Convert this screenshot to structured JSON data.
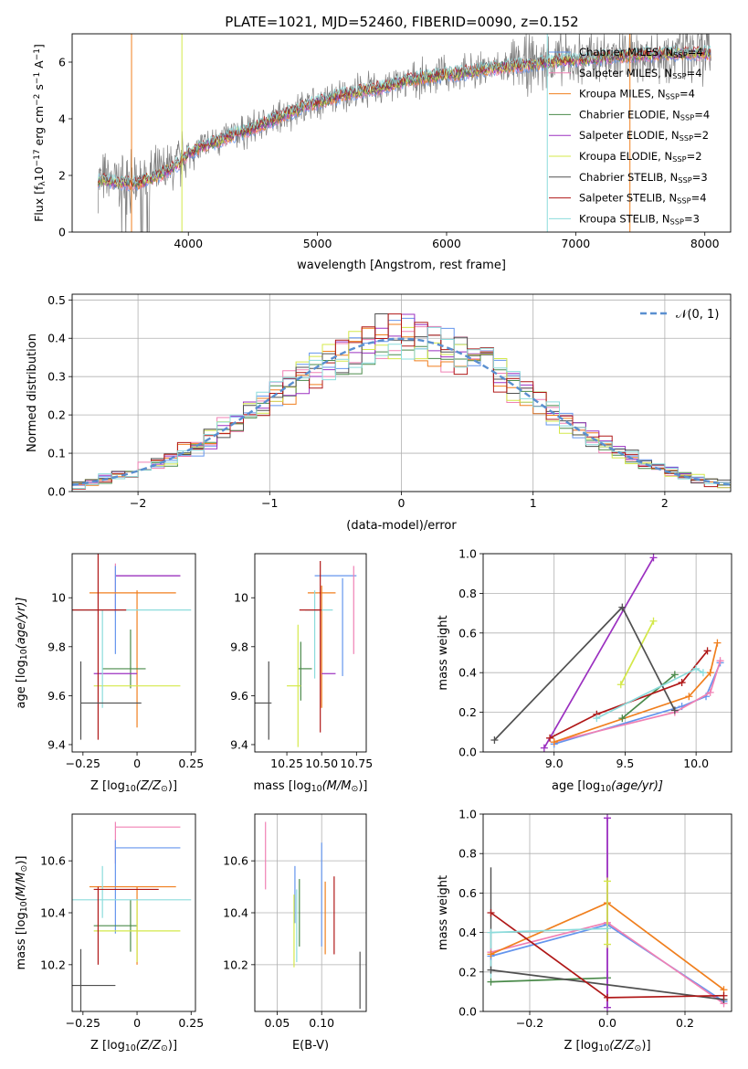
{
  "figure_title": "PLATE=1021, MJD=52460, FIBERID=0090, z=0.152",
  "colors": {
    "data": "#808080",
    "chabrier_miles": "#6495ED",
    "salpeter_miles": "#F080B4",
    "kroupa_miles": "#F07F1E",
    "chabrier_elodie": "#4A8A4A",
    "salpeter_elodie": "#9B30C0",
    "kroupa_elodie": "#D4E84A",
    "chabrier_stelib": "#505050",
    "salpeter_stelib": "#B01818",
    "kroupa_stelib": "#8CDCDC",
    "normal": "#5A8FD0",
    "grid": "#B0B0B0"
  },
  "chart_data": [
    {
      "id": "spectrum",
      "type": "line",
      "xlabel": "wavelength [Angstrom, rest frame]",
      "ylabel": "Flux [f",
      "ylabel_parts": [
        "Flux [f",
        "λ",
        "10",
        "−17",
        " erg cm",
        "−2",
        " s",
        "−1",
        " A",
        "−1",
        "]"
      ],
      "xlim": [
        3100,
        8200
      ],
      "ylim": [
        0,
        7
      ],
      "xticks": [
        4000,
        5000,
        6000,
        7000,
        8000
      ],
      "yticks": [
        0,
        2,
        4,
        6
      ],
      "grid": false,
      "legend_position": "upper-right",
      "legend": [
        {
          "prefix": "Chabrier MILES, N",
          "sub": "SSP",
          "suffix": "=4",
          "color": "#6495ED"
        },
        {
          "prefix": "Salpeter MILES, N",
          "sub": "SSP",
          "suffix": "=4",
          "color": "#F080B4"
        },
        {
          "prefix": "Kroupa MILES, N",
          "sub": "SSP",
          "suffix": "=4",
          "color": "#F07F1E"
        },
        {
          "prefix": "Chabrier ELODIE, N",
          "sub": "SSP",
          "suffix": "=4",
          "color": "#4A8A4A"
        },
        {
          "prefix": "Salpeter ELODIE, N",
          "sub": "SSP",
          "suffix": "=2",
          "color": "#9B30C0"
        },
        {
          "prefix": "Kroupa ELODIE, N",
          "sub": "SSP",
          "suffix": "=2",
          "color": "#D4E84A"
        },
        {
          "prefix": "Chabrier STELIB, N",
          "sub": "SSP",
          "suffix": "=3",
          "color": "#505050"
        },
        {
          "prefix": "Salpeter STELIB, N",
          "sub": "SSP",
          "suffix": "=4",
          "color": "#B01818"
        },
        {
          "prefix": "Kroupa STELIB, N",
          "sub": "SSP",
          "suffix": "=3",
          "color": "#8CDCDC"
        }
      ],
      "continuum": {
        "x": [
          3300,
          3450,
          3600,
          3750,
          3900,
          4000,
          4100,
          4300,
          4500,
          4700,
          4900,
          5100,
          5300,
          5500,
          5700,
          5900,
          6100,
          6300,
          6500,
          6700,
          6900,
          7100,
          7300,
          7500,
          7700
        ],
        "y": [
          1.85,
          1.75,
          1.72,
          1.95,
          2.35,
          2.75,
          3.0,
          3.35,
          3.65,
          4.05,
          4.45,
          4.7,
          4.95,
          5.1,
          5.35,
          5.5,
          5.6,
          5.75,
          5.85,
          5.95,
          6.05,
          6.1,
          6.2,
          6.25,
          6.3
        ]
      }
    },
    {
      "id": "residuals",
      "type": "histogram",
      "xlabel": "(data-model)/error",
      "ylabel": "Normed distribution",
      "xlim": [
        -2.5,
        2.5
      ],
      "ylim": [
        0,
        0.515
      ],
      "xticks": [
        -2,
        -1,
        0,
        1,
        2
      ],
      "yticks": [
        0.0,
        0.1,
        0.2,
        0.3,
        0.4,
        0.5
      ],
      "grid": true,
      "legend_position": "upper-right",
      "legend": [
        {
          "label": "𝒩(0, 1)",
          "color": "#5A8FD0"
        }
      ],
      "bin_width": 0.1
    },
    {
      "id": "age-vs-Z",
      "type": "scatter",
      "xlabel": "Z [log",
      "xlabel_parts": [
        "Z [log",
        "10",
        "(Z/Z",
        "⊙",
        ")]"
      ],
      "ylabel_parts": [
        "age  [log",
        "10",
        "(age/yr)]"
      ],
      "xlim": [
        -0.3,
        0.27
      ],
      "ylim": [
        9.37,
        10.18
      ],
      "xticks": [
        -0.25,
        0.0,
        0.25
      ],
      "yticks": [
        9.4,
        9.6,
        9.8,
        10.0
      ],
      "grid": false,
      "points": [
        {
          "x": 0.05,
          "xerr": 0.15,
          "y": 10.09,
          "yerr": 0.0,
          "color": "#6495ED"
        },
        {
          "x": 0.05,
          "xerr": 0.15,
          "y": 10.09,
          "yerr": 0.0,
          "color": "#F080B4"
        },
        {
          "x": 0.05,
          "xerr": 0.15,
          "y": 10.09,
          "yerr": 0.0,
          "color": "#9B30C0"
        },
        {
          "x": -0.1,
          "xerr": 0.0,
          "y": 10.04,
          "yerr": 0.1,
          "color": "#F080B4"
        },
        {
          "x": 0.0,
          "xerr": 0.0,
          "y": 9.62,
          "yerr": 0.0,
          "color": "#F080B4"
        },
        {
          "x": -0.1,
          "xerr": 0.0,
          "y": 9.95,
          "yerr": 0.18,
          "color": "#6495ED"
        },
        {
          "x": -0.02,
          "xerr": 0.2,
          "y": 10.02,
          "yerr": 0.0,
          "color": "#F07F1E"
        },
        {
          "x": 0.0,
          "xerr": 0.0,
          "y": 9.75,
          "yerr": 0.28,
          "color": "#F07F1E"
        },
        {
          "x": -0.03,
          "xerr": 0.0,
          "y": 9.75,
          "yerr": 0.12,
          "color": "#4A8A4A"
        },
        {
          "x": -0.06,
          "xerr": 0.1,
          "y": 9.71,
          "yerr": 0.0,
          "color": "#4A8A4A"
        },
        {
          "x": -0.1,
          "xerr": 0.1,
          "y": 9.69,
          "yerr": 0.0,
          "color": "#9B30C0"
        },
        {
          "x": 0.0,
          "xerr": 0.2,
          "y": 9.64,
          "yerr": 0.0,
          "color": "#D4E84A"
        },
        {
          "x": -0.16,
          "xerr": 0.0,
          "y": 9.75,
          "yerr": 0.2,
          "color": "#8CDCDC"
        },
        {
          "x": -0.03,
          "xerr": 0.28,
          "y": 9.95,
          "yerr": 0.0,
          "color": "#8CDCDC"
        },
        {
          "x": -0.18,
          "xerr": 0.0,
          "y": 9.8,
          "yerr": 0.38,
          "color": "#B01818"
        },
        {
          "x": -0.2,
          "xerr": 0.15,
          "y": 9.95,
          "yerr": 0.0,
          "color": "#B01818"
        },
        {
          "x": -0.26,
          "xerr": 0.0,
          "y": 9.58,
          "yerr": 0.16,
          "color": "#505050"
        },
        {
          "x": -0.12,
          "xerr": 0.14,
          "y": 9.57,
          "yerr": 0.0,
          "color": "#505050"
        }
      ]
    },
    {
      "id": "age-vs-mass",
      "type": "scatter",
      "xlabel_parts": [
        "mass [log",
        "10",
        "(M/M",
        "⊙",
        ")]"
      ],
      "xlim": [
        10.02,
        10.82
      ],
      "ylim": [
        9.37,
        10.18
      ],
      "xticks": [
        10.25,
        10.5,
        10.75
      ],
      "xtick_labels": [
        "10.25",
        "10.50",
        "10.75"
      ],
      "yticks": [
        9.4,
        9.6,
        9.8,
        10.0
      ],
      "grid": false,
      "points": [
        {
          "x": 10.6,
          "xerr": 0.15,
          "y": 10.09,
          "yerr": 0.0,
          "color": "#6495ED"
        },
        {
          "x": 10.73,
          "xerr": 0.0,
          "y": 9.95,
          "yerr": 0.18,
          "color": "#F080B4"
        },
        {
          "x": 10.65,
          "xerr": 0.0,
          "y": 9.88,
          "yerr": 0.2,
          "color": "#6495ED"
        },
        {
          "x": 10.5,
          "xerr": 0.1,
          "y": 10.02,
          "yerr": 0.0,
          "color": "#F07F1E"
        },
        {
          "x": 10.5,
          "xerr": 0.0,
          "y": 9.8,
          "yerr": 0.25,
          "color": "#F07F1E"
        },
        {
          "x": 10.45,
          "xerr": 0.0,
          "y": 9.85,
          "yerr": 0.18,
          "color": "#8CDCDC"
        },
        {
          "x": 10.48,
          "xerr": 0.1,
          "y": 9.95,
          "yerr": 0.0,
          "color": "#8CDCDC"
        },
        {
          "x": 10.35,
          "xerr": 0.0,
          "y": 9.7,
          "yerr": 0.12,
          "color": "#4A8A4A"
        },
        {
          "x": 10.38,
          "xerr": 0.05,
          "y": 9.71,
          "yerr": 0.0,
          "color": "#4A8A4A"
        },
        {
          "x": 10.55,
          "xerr": 0.05,
          "y": 9.69,
          "yerr": 0.0,
          "color": "#9B30C0"
        },
        {
          "x": 10.33,
          "xerr": 0.0,
          "y": 9.64,
          "yerr": 0.25,
          "color": "#D4E84A"
        },
        {
          "x": 10.3,
          "xerr": 0.05,
          "y": 9.64,
          "yerr": 0.0,
          "color": "#D4E84A"
        },
        {
          "x": 10.49,
          "xerr": 0.0,
          "y": 9.8,
          "yerr": 0.35,
          "color": "#B01818"
        },
        {
          "x": 10.42,
          "xerr": 0.08,
          "y": 9.95,
          "yerr": 0.0,
          "color": "#B01818"
        },
        {
          "x": 10.12,
          "xerr": 0.0,
          "y": 9.58,
          "yerr": 0.16,
          "color": "#505050"
        },
        {
          "x": 10.08,
          "xerr": 0.06,
          "y": 9.57,
          "yerr": 0.0,
          "color": "#505050"
        }
      ]
    },
    {
      "id": "weight-vs-age",
      "type": "line",
      "xlabel_parts": [
        "age  [log",
        "10",
        "(age/yr)]"
      ],
      "ylabel": "mass weight",
      "xlim": [
        8.5,
        10.25
      ],
      "ylim": [
        0,
        1
      ],
      "xticks": [
        9.0,
        9.5,
        10.0
      ],
      "xtick_labels": [
        "9.0",
        "9.5",
        "10.0"
      ],
      "yticks": [
        0.0,
        0.2,
        0.4,
        0.6,
        0.8,
        1.0
      ],
      "grid": true,
      "series": [
        {
          "color": "#6495ED",
          "x": [
            9.0,
            9.9,
            10.07,
            10.17
          ],
          "y": [
            0.04,
            0.23,
            0.28,
            0.45
          ]
        },
        {
          "color": "#F080B4",
          "x": [
            9.0,
            9.85,
            10.1,
            10.17
          ],
          "y": [
            0.05,
            0.2,
            0.3,
            0.46
          ]
        },
        {
          "color": "#F07F1E",
          "x": [
            9.0,
            9.95,
            10.1,
            10.15
          ],
          "y": [
            0.05,
            0.28,
            0.4,
            0.55
          ]
        },
        {
          "color": "#4A8A4A",
          "x": [
            9.48,
            9.85
          ],
          "y": [
            0.17,
            0.39
          ]
        },
        {
          "color": "#9B30C0",
          "x": [
            8.93,
            9.7
          ],
          "y": [
            0.02,
            0.98
          ]
        },
        {
          "color": "#D4E84A",
          "x": [
            9.47,
            9.7
          ],
          "y": [
            0.34,
            0.66
          ]
        },
        {
          "color": "#505050",
          "x": [
            8.58,
            9.48,
            9.85
          ],
          "y": [
            0.06,
            0.73,
            0.21
          ]
        },
        {
          "color": "#B01818",
          "x": [
            8.97,
            9.3,
            9.9,
            10.08
          ],
          "y": [
            0.07,
            0.19,
            0.35,
            0.51
          ]
        },
        {
          "color": "#8CDCDC",
          "x": [
            9.3,
            10.0,
            10.05
          ],
          "y": [
            0.17,
            0.42,
            0.4
          ]
        }
      ]
    },
    {
      "id": "mass-vs-Z",
      "type": "scatter",
      "xlabel_parts": [
        "Z [log",
        "10",
        "(Z/Z",
        "⊙",
        ")]"
      ],
      "ylabel_parts": [
        "mass [log",
        "10",
        "(M/M",
        "⊙",
        ")]"
      ],
      "xlim": [
        -0.3,
        0.27
      ],
      "ylim": [
        10.02,
        10.78
      ],
      "xticks": [
        -0.25,
        0.0,
        0.25
      ],
      "yticks": [
        10.2,
        10.4,
        10.6
      ],
      "grid": false,
      "points": [
        {
          "x": 0.05,
          "xerr": 0.15,
          "y": 10.73,
          "yerr": 0.0,
          "color": "#F080B4"
        },
        {
          "x": -0.1,
          "xerr": 0.0,
          "y": 10.67,
          "yerr": 0.08,
          "color": "#F080B4"
        },
        {
          "x": 0.05,
          "xerr": 0.15,
          "y": 10.65,
          "yerr": 0.0,
          "color": "#6495ED"
        },
        {
          "x": -0.1,
          "xerr": 0.0,
          "y": 10.5,
          "yerr": 0.18,
          "color": "#6495ED"
        },
        {
          "x": -0.02,
          "xerr": 0.2,
          "y": 10.5,
          "yerr": 0.0,
          "color": "#F07F1E"
        },
        {
          "x": 0.0,
          "xerr": 0.0,
          "y": 10.35,
          "yerr": 0.15,
          "color": "#F07F1E"
        },
        {
          "x": -0.03,
          "xerr": 0.0,
          "y": 10.35,
          "yerr": 0.1,
          "color": "#4A8A4A"
        },
        {
          "x": -0.1,
          "xerr": 0.1,
          "y": 10.35,
          "yerr": 0.0,
          "color": "#4A8A4A"
        },
        {
          "x": 0.0,
          "xerr": 0.2,
          "y": 10.33,
          "yerr": 0.0,
          "color": "#D4E84A"
        },
        {
          "x": 0.0,
          "xerr": 0.0,
          "y": 10.33,
          "yerr": 0.12,
          "color": "#D4E84A"
        },
        {
          "x": -0.16,
          "xerr": 0.0,
          "y": 10.48,
          "yerr": 0.1,
          "color": "#8CDCDC"
        },
        {
          "x": -0.03,
          "xerr": 0.28,
          "y": 10.45,
          "yerr": 0.0,
          "color": "#8CDCDC"
        },
        {
          "x": -0.18,
          "xerr": 0.0,
          "y": 10.35,
          "yerr": 0.15,
          "color": "#B01818"
        },
        {
          "x": -0.05,
          "xerr": 0.15,
          "y": 10.49,
          "yerr": 0.0,
          "color": "#B01818"
        },
        {
          "x": -0.26,
          "xerr": 0.0,
          "y": 10.12,
          "yerr": 0.14,
          "color": "#505050"
        },
        {
          "x": -0.2,
          "xerr": 0.1,
          "y": 10.12,
          "yerr": 0.0,
          "color": "#505050"
        }
      ]
    },
    {
      "id": "mass-vs-EBV",
      "type": "scatter",
      "xlabel": "E(B-V)",
      "xlim": [
        0.025,
        0.15
      ],
      "ylim": [
        10.02,
        10.78
      ],
      "xticks": [
        0.05,
        0.1
      ],
      "xtick_labels": [
        "0.05",
        "0.10"
      ],
      "yticks": [
        10.2,
        10.4,
        10.6
      ],
      "grid": true,
      "points": [
        {
          "x": 0.037,
          "yerr": 0.13,
          "y": 10.62,
          "color": "#F080B4"
        },
        {
          "x": 0.07,
          "yerr": 0.11,
          "y": 10.47,
          "color": "#6495ED"
        },
        {
          "x": 0.072,
          "yerr": 0.14,
          "y": 10.35,
          "color": "#8CDCDC"
        },
        {
          "x": 0.069,
          "yerr": 0.14,
          "y": 10.33,
          "color": "#D4E84A"
        },
        {
          "x": 0.075,
          "yerr": 0.13,
          "y": 10.4,
          "color": "#4A8A4A"
        },
        {
          "x": 0.1,
          "yerr": 0.2,
          "y": 10.47,
          "color": "#6495ED"
        },
        {
          "x": 0.104,
          "yerr": 0.14,
          "y": 10.38,
          "color": "#F07F1E"
        },
        {
          "x": 0.114,
          "yerr": 0.15,
          "y": 10.39,
          "color": "#B01818"
        },
        {
          "x": 0.143,
          "yerr": 0.11,
          "y": 10.14,
          "color": "#505050"
        }
      ]
    },
    {
      "id": "weight-vs-Z",
      "type": "line",
      "xlabel_parts": [
        "Z [log",
        "10",
        "(Z/Z",
        "⊙",
        ")]"
      ],
      "ylabel": "mass weight",
      "xlim": [
        -0.32,
        0.32
      ],
      "ylim": [
        0,
        1
      ],
      "xticks": [
        -0.2,
        0.0,
        0.2
      ],
      "xtick_labels": [
        "−0.2",
        "0.0",
        "0.2"
      ],
      "yticks": [
        0.0,
        0.2,
        0.4,
        0.6,
        0.8,
        1.0
      ],
      "grid": true,
      "series": [
        {
          "color": "#6495ED",
          "x": [
            -0.3,
            0.0,
            0.3
          ],
          "y": [
            0.28,
            0.44,
            0.05
          ]
        },
        {
          "color": "#F080B4",
          "x": [
            -0.3,
            0.0,
            0.3
          ],
          "y": [
            0.3,
            0.45,
            0.04
          ]
        },
        {
          "color": "#F07F1E",
          "x": [
            -0.3,
            0.0,
            0.3
          ],
          "y": [
            0.29,
            0.55,
            0.11
          ]
        },
        {
          "color": "#4A8A4A",
          "x": [
            -0.3,
            0.0
          ],
          "y": [
            0.15,
            0.17
          ]
        },
        {
          "color": "#9B30C0",
          "x": [
            0.0,
            0.0
          ],
          "y": [
            0.02,
            0.98
          ]
        },
        {
          "color": "#D4E84A",
          "x": [
            0.0,
            0.0
          ],
          "y": [
            0.34,
            0.66
          ]
        },
        {
          "color": "#505050",
          "x": [
            -0.3,
            0.3
          ],
          "y": [
            0.21,
            0.06
          ]
        },
        {
          "color": "#B01818",
          "x": [
            -0.3,
            0.0,
            0.3
          ],
          "y": [
            0.5,
            0.07,
            0.08
          ]
        },
        {
          "color": "#8CDCDC",
          "x": [
            -0.3,
            0.0
          ],
          "y": [
            0.4,
            0.42
          ]
        }
      ],
      "vertical_spreads": [
        {
          "color": "#505050",
          "x": -0.3,
          "y": [
            0.21,
            0.73
          ]
        },
        {
          "color": "#8CDCDC",
          "x": -0.3,
          "y": [
            0.17,
            0.4
          ]
        },
        {
          "color": "#9B30C0",
          "x": 0.0,
          "y": [
            0.02,
            0.98
          ]
        },
        {
          "color": "#D4E84A",
          "x": 0.0,
          "y": [
            0.34,
            0.66
          ]
        }
      ]
    }
  ]
}
